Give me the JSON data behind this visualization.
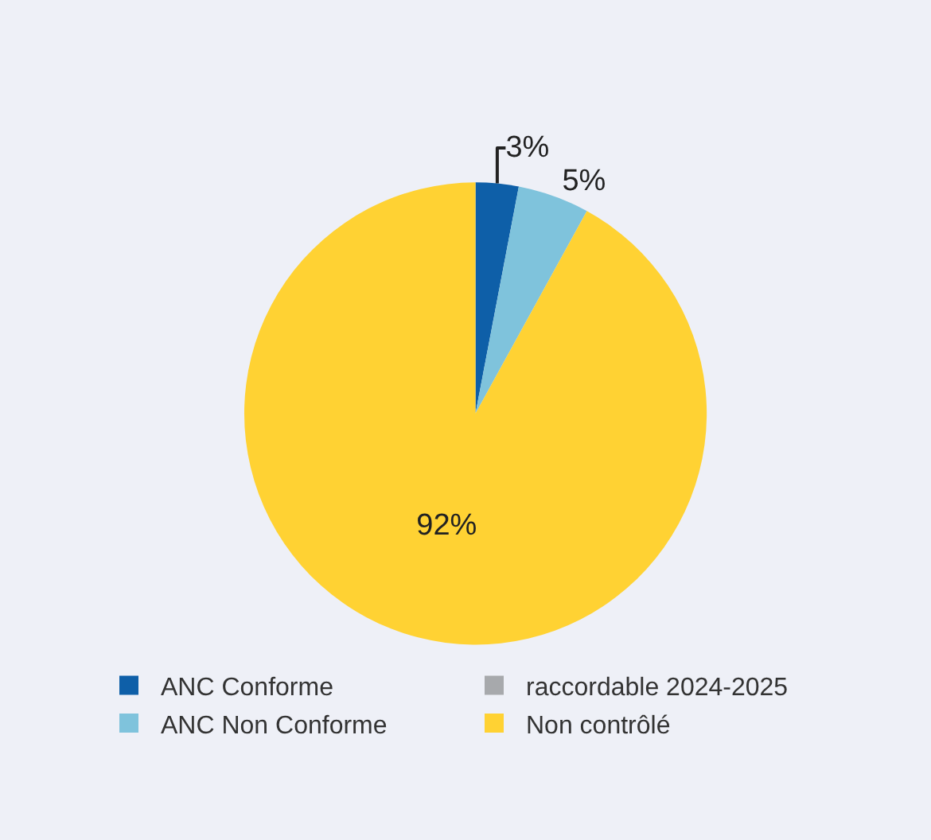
{
  "chart_data": {
    "type": "pie",
    "categories": [
      "ANC Conforme",
      "raccordable 2024-2025",
      "ANC Non Conforme",
      "Non contrôlé"
    ],
    "values": [
      3,
      0,
      5,
      92
    ],
    "colors": [
      "#0e5fa8",
      "#a7a9ac",
      "#7fc3dc",
      "#ffd233"
    ],
    "value_labels": [
      "3%",
      null,
      "5%",
      "92%"
    ],
    "legend": "bottom"
  }
}
